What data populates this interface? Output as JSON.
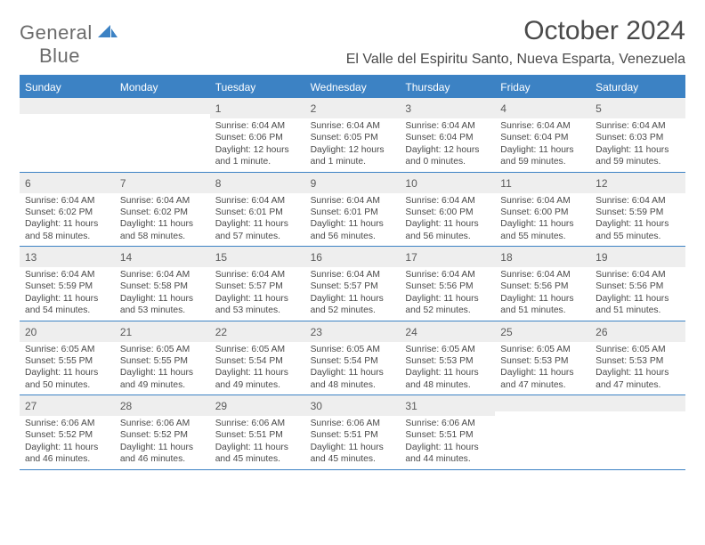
{
  "logo": {
    "word1": "General",
    "word2": "Blue"
  },
  "title": "October 2024",
  "location": "El Valle del Espiritu Santo, Nueva Esparta, Venezuela",
  "daynames": [
    "Sunday",
    "Monday",
    "Tuesday",
    "Wednesday",
    "Thursday",
    "Friday",
    "Saturday"
  ],
  "colors": {
    "accent": "#3c82c4",
    "header_bg": "#3c82c4",
    "header_text": "#ffffff",
    "daynum_bg": "#eeeeee",
    "text": "#4a4a4a",
    "background": "#ffffff"
  },
  "weeks": [
    [
      {
        "n": "",
        "sr": "",
        "ss": "",
        "dl": ""
      },
      {
        "n": "",
        "sr": "",
        "ss": "",
        "dl": ""
      },
      {
        "n": "1",
        "sr": "Sunrise: 6:04 AM",
        "ss": "Sunset: 6:06 PM",
        "dl": "Daylight: 12 hours and 1 minute."
      },
      {
        "n": "2",
        "sr": "Sunrise: 6:04 AM",
        "ss": "Sunset: 6:05 PM",
        "dl": "Daylight: 12 hours and 1 minute."
      },
      {
        "n": "3",
        "sr": "Sunrise: 6:04 AM",
        "ss": "Sunset: 6:04 PM",
        "dl": "Daylight: 12 hours and 0 minutes."
      },
      {
        "n": "4",
        "sr": "Sunrise: 6:04 AM",
        "ss": "Sunset: 6:04 PM",
        "dl": "Daylight: 11 hours and 59 minutes."
      },
      {
        "n": "5",
        "sr": "Sunrise: 6:04 AM",
        "ss": "Sunset: 6:03 PM",
        "dl": "Daylight: 11 hours and 59 minutes."
      }
    ],
    [
      {
        "n": "6",
        "sr": "Sunrise: 6:04 AM",
        "ss": "Sunset: 6:02 PM",
        "dl": "Daylight: 11 hours and 58 minutes."
      },
      {
        "n": "7",
        "sr": "Sunrise: 6:04 AM",
        "ss": "Sunset: 6:02 PM",
        "dl": "Daylight: 11 hours and 58 minutes."
      },
      {
        "n": "8",
        "sr": "Sunrise: 6:04 AM",
        "ss": "Sunset: 6:01 PM",
        "dl": "Daylight: 11 hours and 57 minutes."
      },
      {
        "n": "9",
        "sr": "Sunrise: 6:04 AM",
        "ss": "Sunset: 6:01 PM",
        "dl": "Daylight: 11 hours and 56 minutes."
      },
      {
        "n": "10",
        "sr": "Sunrise: 6:04 AM",
        "ss": "Sunset: 6:00 PM",
        "dl": "Daylight: 11 hours and 56 minutes."
      },
      {
        "n": "11",
        "sr": "Sunrise: 6:04 AM",
        "ss": "Sunset: 6:00 PM",
        "dl": "Daylight: 11 hours and 55 minutes."
      },
      {
        "n": "12",
        "sr": "Sunrise: 6:04 AM",
        "ss": "Sunset: 5:59 PM",
        "dl": "Daylight: 11 hours and 55 minutes."
      }
    ],
    [
      {
        "n": "13",
        "sr": "Sunrise: 6:04 AM",
        "ss": "Sunset: 5:59 PM",
        "dl": "Daylight: 11 hours and 54 minutes."
      },
      {
        "n": "14",
        "sr": "Sunrise: 6:04 AM",
        "ss": "Sunset: 5:58 PM",
        "dl": "Daylight: 11 hours and 53 minutes."
      },
      {
        "n": "15",
        "sr": "Sunrise: 6:04 AM",
        "ss": "Sunset: 5:57 PM",
        "dl": "Daylight: 11 hours and 53 minutes."
      },
      {
        "n": "16",
        "sr": "Sunrise: 6:04 AM",
        "ss": "Sunset: 5:57 PM",
        "dl": "Daylight: 11 hours and 52 minutes."
      },
      {
        "n": "17",
        "sr": "Sunrise: 6:04 AM",
        "ss": "Sunset: 5:56 PM",
        "dl": "Daylight: 11 hours and 52 minutes."
      },
      {
        "n": "18",
        "sr": "Sunrise: 6:04 AM",
        "ss": "Sunset: 5:56 PM",
        "dl": "Daylight: 11 hours and 51 minutes."
      },
      {
        "n": "19",
        "sr": "Sunrise: 6:04 AM",
        "ss": "Sunset: 5:56 PM",
        "dl": "Daylight: 11 hours and 51 minutes."
      }
    ],
    [
      {
        "n": "20",
        "sr": "Sunrise: 6:05 AM",
        "ss": "Sunset: 5:55 PM",
        "dl": "Daylight: 11 hours and 50 minutes."
      },
      {
        "n": "21",
        "sr": "Sunrise: 6:05 AM",
        "ss": "Sunset: 5:55 PM",
        "dl": "Daylight: 11 hours and 49 minutes."
      },
      {
        "n": "22",
        "sr": "Sunrise: 6:05 AM",
        "ss": "Sunset: 5:54 PM",
        "dl": "Daylight: 11 hours and 49 minutes."
      },
      {
        "n": "23",
        "sr": "Sunrise: 6:05 AM",
        "ss": "Sunset: 5:54 PM",
        "dl": "Daylight: 11 hours and 48 minutes."
      },
      {
        "n": "24",
        "sr": "Sunrise: 6:05 AM",
        "ss": "Sunset: 5:53 PM",
        "dl": "Daylight: 11 hours and 48 minutes."
      },
      {
        "n": "25",
        "sr": "Sunrise: 6:05 AM",
        "ss": "Sunset: 5:53 PM",
        "dl": "Daylight: 11 hours and 47 minutes."
      },
      {
        "n": "26",
        "sr": "Sunrise: 6:05 AM",
        "ss": "Sunset: 5:53 PM",
        "dl": "Daylight: 11 hours and 47 minutes."
      }
    ],
    [
      {
        "n": "27",
        "sr": "Sunrise: 6:06 AM",
        "ss": "Sunset: 5:52 PM",
        "dl": "Daylight: 11 hours and 46 minutes."
      },
      {
        "n": "28",
        "sr": "Sunrise: 6:06 AM",
        "ss": "Sunset: 5:52 PM",
        "dl": "Daylight: 11 hours and 46 minutes."
      },
      {
        "n": "29",
        "sr": "Sunrise: 6:06 AM",
        "ss": "Sunset: 5:51 PM",
        "dl": "Daylight: 11 hours and 45 minutes."
      },
      {
        "n": "30",
        "sr": "Sunrise: 6:06 AM",
        "ss": "Sunset: 5:51 PM",
        "dl": "Daylight: 11 hours and 45 minutes."
      },
      {
        "n": "31",
        "sr": "Sunrise: 6:06 AM",
        "ss": "Sunset: 5:51 PM",
        "dl": "Daylight: 11 hours and 44 minutes."
      },
      {
        "n": "",
        "sr": "",
        "ss": "",
        "dl": ""
      },
      {
        "n": "",
        "sr": "",
        "ss": "",
        "dl": ""
      }
    ]
  ]
}
